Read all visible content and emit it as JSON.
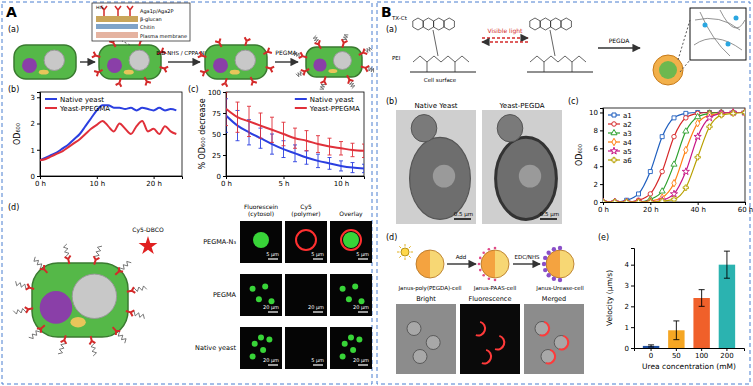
{
  "figure": {
    "A": {
      "letter": "A",
      "panels": [
        "(a)",
        "(b)",
        "(c)",
        "(d)"
      ],
      "schematic_a": {
        "inset": [
          "HIS",
          "Aga1p/Aga2P",
          "β-glucan",
          "Chitin",
          "Plasma membrane"
        ],
        "step1": "BiB-NHS / CPPA-NHS",
        "step2": "PEGMA"
      },
      "schematic_d": {
        "dye": "Cy5-DBCO"
      },
      "micrographs": {
        "columns": [
          [
            "Fluorescein",
            "(cytosol)"
          ],
          [
            "Cy5",
            "(polymer)"
          ],
          [
            "Overlay"
          ]
        ],
        "rows": [
          "PEGMA-N₃",
          "PEGMA",
          "Native yeast"
        ],
        "scale_bars": [
          [
            "5 μm",
            "5 μm",
            "5 μm"
          ],
          [
            "20 μm",
            "20 μm",
            "20 μm"
          ],
          [
            "20 μm",
            "5 μm",
            "20 μm"
          ]
        ]
      }
    },
    "B": {
      "letter": "B",
      "panels": [
        "(a)",
        "(b)",
        "(c)",
        "(d)",
        "(e)"
      ],
      "schematic_a": {
        "labels": [
          "TX-Ct",
          "PEI",
          "Cell surface"
        ],
        "step1": "Visible light",
        "step2": "PEGDA"
      },
      "tem": {
        "titles": [
          "Native Yeast",
          "Yeast-PEGDA"
        ],
        "scale_bars": [
          "0.5 μm",
          "0.5 μm"
        ]
      },
      "schematic_d": {
        "cells": [
          "Janus-poly(PEGDA)-cell",
          "Janus-PAAS-cell",
          "Janus-Urease-cell"
        ],
        "arrows": [
          "Add",
          "EDC/NHS"
        ],
        "images": [
          "Bright",
          "Fluorescence",
          "Merged"
        ]
      }
    }
  },
  "chart_data": [
    {
      "type": "line",
      "y_label": "OD₆₀₀",
      "legend": "upper left",
      "x": [
        0,
        1,
        2,
        3,
        4,
        5,
        6,
        7,
        8,
        9,
        10,
        11,
        12,
        13,
        14,
        15,
        16,
        17,
        18,
        19,
        20,
        21,
        22,
        23,
        24
      ],
      "xlim": [
        0,
        25
      ],
      "xticks": [
        {
          "value": 0,
          "label": "0 h"
        },
        {
          "value": 10,
          "label": "10 h"
        },
        {
          "value": 20,
          "label": "20 h"
        }
      ],
      "ylim": [
        0,
        3.2
      ],
      "yticks": [
        0,
        1,
        2,
        3
      ],
      "series": [
        {
          "name": "Native yeast",
          "color": "#2b3fe0",
          "values": [
            0.6,
            0.7,
            0.8,
            0.9,
            1.05,
            1.2,
            1.4,
            1.6,
            1.9,
            2.2,
            2.5,
            2.7,
            2.7,
            2.6,
            2.6,
            2.55,
            2.6,
            2.5,
            2.6,
            2.55,
            2.5,
            2.6,
            2.5,
            2.55,
            2.5
          ]
        },
        {
          "name": "Yeast-PPEGMA",
          "color": "#e0303a",
          "values": [
            0.6,
            0.65,
            0.75,
            0.85,
            0.95,
            1.1,
            1.25,
            1.4,
            1.6,
            1.8,
            1.95,
            2.1,
            1.9,
            1.7,
            2.0,
            1.8,
            1.6,
            1.9,
            2.1,
            1.7,
            1.8,
            1.6,
            1.9,
            1.7,
            1.6
          ]
        }
      ]
    },
    {
      "type": "line",
      "y_label": "% OD₆₀₀ decrease",
      "legend": "upper right",
      "x": [
        0,
        1,
        2,
        3,
        4,
        5,
        6,
        7,
        8,
        9,
        10,
        11,
        12
      ],
      "xlim": [
        0,
        12
      ],
      "xticks": [
        {
          "value": 0,
          "label": "0 h"
        },
        {
          "value": 5,
          "label": "5 h"
        },
        {
          "value": 10,
          "label": "10 h"
        }
      ],
      "ylim": [
        0,
        100
      ],
      "yticks": [
        0,
        25,
        50,
        75,
        100
      ],
      "series": [
        {
          "name": "Native yeast",
          "color": "#2b3fe0",
          "values": [
            72,
            60,
            52,
            45,
            38,
            32,
            27,
            22,
            18,
            15,
            12,
            10,
            9
          ],
          "errors": [
            20,
            18,
            15,
            12,
            12,
            10,
            10,
            8,
            8,
            7,
            6,
            6,
            5
          ]
        },
        {
          "name": "Yeast-PPEGMA",
          "color": "#e0303a",
          "values": [
            80,
            70,
            65,
            60,
            55,
            50,
            45,
            42,
            38,
            35,
            33,
            31,
            30
          ],
          "errors": [
            20,
            18,
            18,
            15,
            15,
            14,
            12,
            12,
            10,
            10,
            8,
            8,
            8
          ]
        }
      ]
    },
    {
      "type": "line",
      "y_label": "OD₆₀₀",
      "legend": "upper left",
      "x": [
        0,
        5,
        10,
        15,
        20,
        25,
        30,
        35,
        40,
        45,
        50,
        55,
        60
      ],
      "xlim": [
        0,
        60
      ],
      "xticks": [
        {
          "value": 0,
          "label": "0 h"
        },
        {
          "value": 20,
          "label": "20 h"
        },
        {
          "value": 40,
          "label": "40 h"
        },
        {
          "value": 60,
          "label": "60 h"
        }
      ],
      "ylim": [
        0,
        10.5
      ],
      "yticks": [
        0,
        2,
        4,
        6,
        8,
        10
      ],
      "series": [
        {
          "name": "a1",
          "color": "#1f5fbf",
          "marker": "square",
          "values": [
            0,
            0,
            0.2,
            0.9,
            3.4,
            7.3,
            9.4,
            9.9,
            10,
            10,
            10,
            10,
            10
          ]
        },
        {
          "name": "a2",
          "color": "#d62728",
          "marker": "circle",
          "values": [
            0,
            0,
            0,
            0.2,
            0.9,
            3.4,
            7.3,
            9.4,
            9.9,
            10,
            10,
            10,
            10
          ]
        },
        {
          "name": "a3",
          "color": "#2ca02c",
          "marker": "triangle",
          "values": [
            0,
            0,
            0,
            0,
            0.3,
            1.2,
            4.2,
            7.9,
            9.5,
            9.9,
            10,
            10,
            10
          ]
        },
        {
          "name": "a4",
          "color": "#ff7f0e",
          "marker": "diamond",
          "values": [
            0,
            0,
            0,
            0,
            0.1,
            0.5,
            2.1,
            5.8,
            8.8,
            9.7,
            9.9,
            10,
            10
          ]
        },
        {
          "name": "a5",
          "color": "#c71585",
          "marker": "star",
          "values": [
            0,
            0,
            0,
            0,
            0,
            0.2,
            0.9,
            3.4,
            7.3,
            9.4,
            9.9,
            10,
            10
          ]
        },
        {
          "name": "a6",
          "color": "#b8a000",
          "marker": "cross",
          "values": [
            0,
            0,
            0,
            0,
            0,
            0.1,
            0.3,
            1.6,
            5,
            8.4,
            9.7,
            9.9,
            10
          ]
        }
      ]
    },
    {
      "type": "bar",
      "x_label": "Urea concentration (mM)",
      "y_label": "Velocity (μm/s)",
      "categories": [
        "0",
        "50",
        "100",
        "200"
      ],
      "values": [
        0.1,
        0.85,
        2.4,
        4.0
      ],
      "errors": [
        0.05,
        0.45,
        0.4,
        0.65
      ],
      "colors": [
        "#1f4fa0",
        "#f5a623",
        "#f0602a",
        "#2bb3b0"
      ],
      "ylim": [
        0,
        4.8
      ],
      "yticks": [
        0,
        1,
        2,
        3,
        4
      ]
    }
  ]
}
